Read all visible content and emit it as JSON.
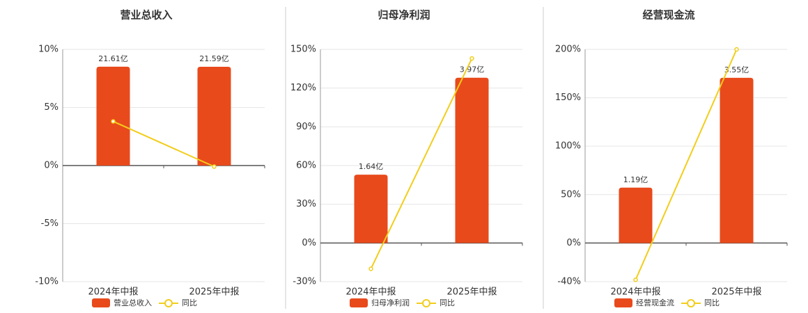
{
  "chart_data": [
    {
      "type": "bar",
      "title": "营业总收入",
      "categories": [
        "2024年中报",
        "2025年中报"
      ],
      "series": [
        {
          "name": "营业总收入",
          "color": "#e84a1c",
          "axis": "y2",
          "values": [
            21.61,
            21.59
          ],
          "value_labels": [
            "21.61亿",
            "21.59亿"
          ]
        },
        {
          "name": "同比",
          "type": "line",
          "color": "#f2cd1a",
          "values": [
            3.8,
            -0.09
          ]
        }
      ],
      "ylim": [
        -10,
        10
      ],
      "yticks": [
        {
          "value": -10,
          "label": "-10%"
        },
        {
          "value": -5,
          "label": "-5%"
        },
        {
          "value": 0,
          "label": "0%"
        },
        {
          "value": 5,
          "label": "5%"
        },
        {
          "value": 10,
          "label": "10%"
        }
      ],
      "y2lim": [
        -25.4,
        25.4
      ],
      "grid": true
    },
    {
      "type": "bar",
      "title": "归母净利润",
      "categories": [
        "2024年中报",
        "2025年中报"
      ],
      "series": [
        {
          "name": "归母净利润",
          "color": "#e84a1c",
          "axis": "y2",
          "values": [
            1.64,
            3.97
          ],
          "value_labels": [
            "1.64亿",
            "3.97亿"
          ]
        },
        {
          "name": "同比",
          "type": "line",
          "color": "#f2cd1a",
          "values": [
            -20,
            143
          ]
        }
      ],
      "ylim": [
        -30,
        150
      ],
      "yticks": [
        {
          "value": -30,
          "label": "-30%"
        },
        {
          "value": 0,
          "label": "0%"
        },
        {
          "value": 30,
          "label": "30%"
        },
        {
          "value": 60,
          "label": "60%"
        },
        {
          "value": 90,
          "label": "90%"
        },
        {
          "value": 120,
          "label": "120%"
        },
        {
          "value": 150,
          "label": "150%"
        }
      ],
      "y2lim": [
        -0.93,
        4.65
      ],
      "grid": true
    },
    {
      "type": "bar",
      "title": "经营现金流",
      "categories": [
        "2024年中报",
        "2025年中报"
      ],
      "series": [
        {
          "name": "经营现金流",
          "color": "#e84a1c",
          "axis": "y2",
          "values": [
            1.19,
            3.55
          ],
          "value_labels": [
            "1.19亿",
            "3.55亿"
          ]
        },
        {
          "name": "同比",
          "type": "line",
          "color": "#f2cd1a",
          "values": [
            -38,
            200
          ]
        }
      ],
      "ylim": [
        -40,
        200
      ],
      "yticks": [
        {
          "value": -40,
          "label": "-40%"
        },
        {
          "value": 0,
          "label": "0%"
        },
        {
          "value": 50,
          "label": "50%"
        },
        {
          "value": 100,
          "label": "100%"
        },
        {
          "value": 150,
          "label": "150%"
        },
        {
          "value": 200,
          "label": "200%"
        }
      ],
      "y2lim": [
        -0.83,
        4.16
      ],
      "grid": true
    }
  ]
}
